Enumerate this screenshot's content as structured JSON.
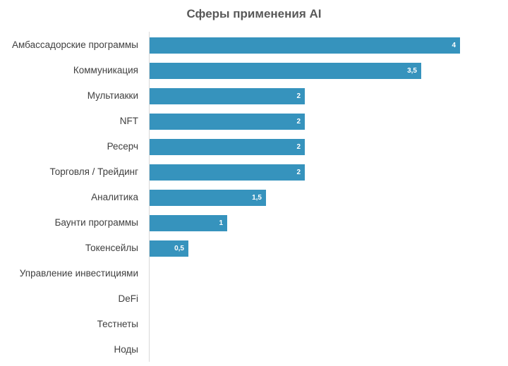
{
  "chart_data": {
    "type": "bar",
    "orientation": "horizontal",
    "title": "Сферы применения AI",
    "xlabel": "",
    "ylabel": "",
    "categories": [
      "Амбассадорские программы",
      "Коммуникация",
      "Мультиакки",
      "NFT",
      "Ресерч",
      "Торговля / Трейдинг",
      "Аналитика",
      "Баунти программы",
      "Токенсейлы",
      "Управление инвестициями",
      "DeFi",
      "Тестнеты",
      "Ноды"
    ],
    "values": [
      4,
      3.5,
      2,
      2,
      2,
      2,
      1.5,
      1,
      0.5,
      0,
      0,
      0,
      0
    ],
    "value_labels": [
      "4",
      "3,5",
      "2",
      "2",
      "2",
      "2",
      "1,5",
      "1",
      "0,5",
      "",
      "",
      "",
      ""
    ],
    "xlim": [
      0,
      4.4
    ],
    "grid": false,
    "legend": null,
    "bar_color": "#3693bd",
    "data_labels": "inside-end"
  }
}
